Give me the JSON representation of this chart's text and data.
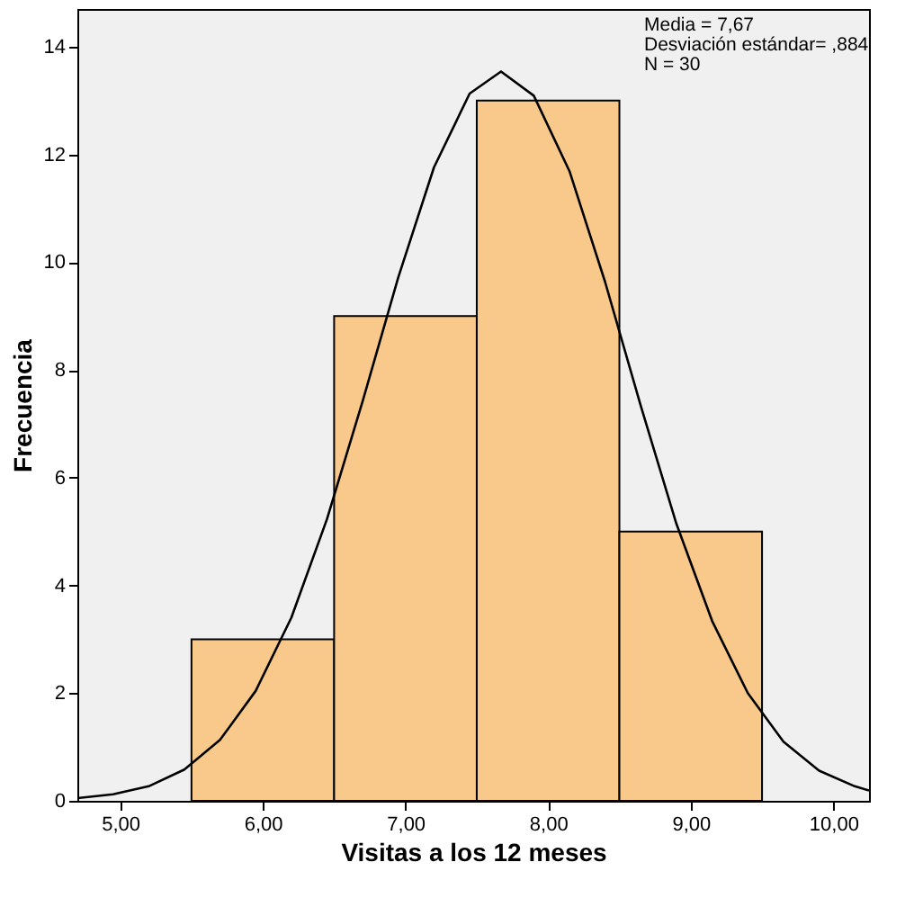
{
  "chart_data": {
    "type": "histogram",
    "xlabel": "Visitas a los 12 meses",
    "ylabel": "Frecuencia",
    "bins": [
      5.5,
      6.5,
      7.5,
      8.5,
      9.5
    ],
    "values": [
      3,
      9,
      13,
      5
    ],
    "color": "#f8c98a",
    "series": [
      {
        "type": "line",
        "color": "#000000",
        "x": [
          4.7,
          4.95,
          5.2,
          5.45,
          5.7,
          5.95,
          6.2,
          6.45,
          6.7,
          6.95,
          7.2,
          7.45,
          7.67,
          7.9,
          8.15,
          8.4,
          8.65,
          8.9,
          9.15,
          9.4,
          9.65,
          9.9,
          10.15,
          10.25
        ],
        "values": [
          0.05,
          0.12,
          0.27,
          0.58,
          1.13,
          2.04,
          3.4,
          5.23,
          7.42,
          9.72,
          11.76,
          13.13,
          13.54,
          13.09,
          11.69,
          9.63,
          7.33,
          5.14,
          3.34,
          2.0,
          1.1,
          0.56,
          0.27,
          0.19
        ]
      }
    ],
    "annotations": [
      "Media = 7,67",
      "Desviación estándar= ,884",
      "N = 30"
    ],
    "xlim": [
      4.7,
      10.25
    ],
    "xticks": [
      {
        "value": 5,
        "label": "5,00"
      },
      {
        "value": 6,
        "label": "6,00"
      },
      {
        "value": 7,
        "label": "7,00"
      },
      {
        "value": 8,
        "label": "8,00"
      },
      {
        "value": 9,
        "label": "9,00"
      },
      {
        "value": 10,
        "label": "10,00"
      }
    ],
    "ylim": [
      0,
      14.7
    ],
    "yticks": [
      0,
      2,
      4,
      6,
      8,
      10,
      12,
      14
    ],
    "grid": false
  }
}
